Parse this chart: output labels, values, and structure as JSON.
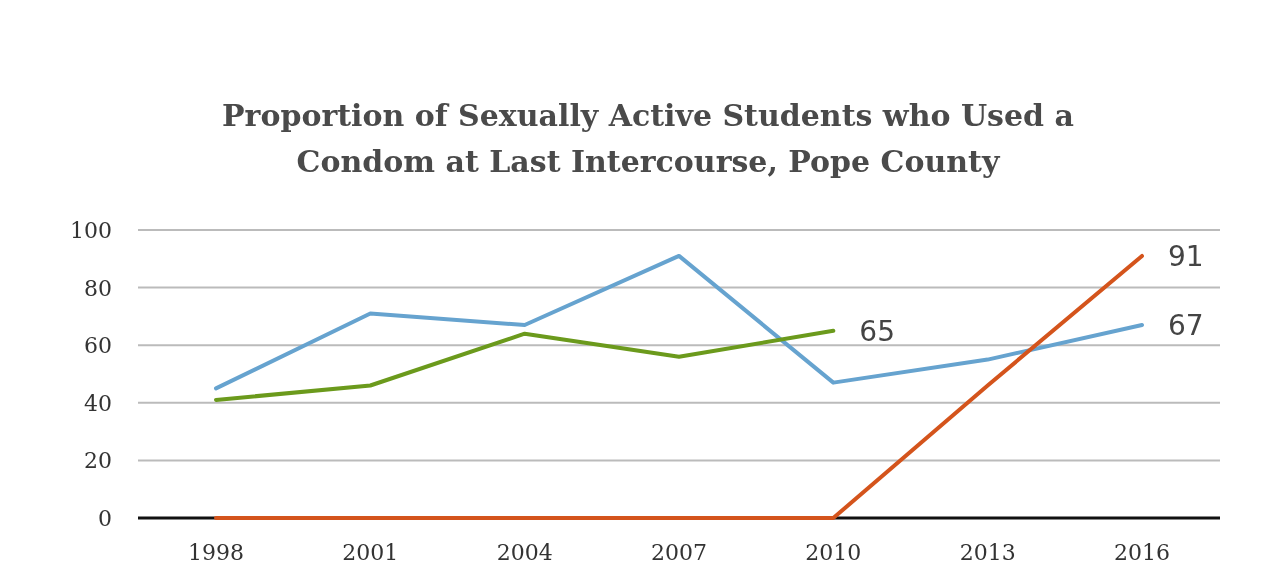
{
  "chart_data": {
    "type": "line",
    "title": "Proportion of Sexually Active Students who Used a Condom at Last Intercourse, Pope County",
    "categories": [
      "1998",
      "2001",
      "2004",
      "2007",
      "2010",
      "2013",
      "2016"
    ],
    "series": [
      {
        "color": "#66a3cf",
        "values": [
          45,
          71,
          67,
          91,
          47,
          55,
          67
        ],
        "value_labels": [
          null,
          null,
          null,
          null,
          null,
          null,
          "67"
        ]
      },
      {
        "color": "#6b9a1c",
        "values": [
          41,
          46,
          64,
          56,
          65,
          null,
          null
        ],
        "value_labels": [
          null,
          null,
          null,
          null,
          "65",
          null,
          null
        ]
      },
      {
        "color": "#d4541c",
        "values": [
          0,
          0,
          0,
          0,
          0,
          46,
          91
        ],
        "value_labels": [
          null,
          null,
          null,
          null,
          null,
          null,
          "91"
        ]
      }
    ],
    "ylim": [
      0,
      100
    ],
    "yticks": [
      0,
      20,
      40,
      60,
      80,
      100
    ],
    "grid": "y",
    "marker": "none",
    "line_style": "solid"
  }
}
